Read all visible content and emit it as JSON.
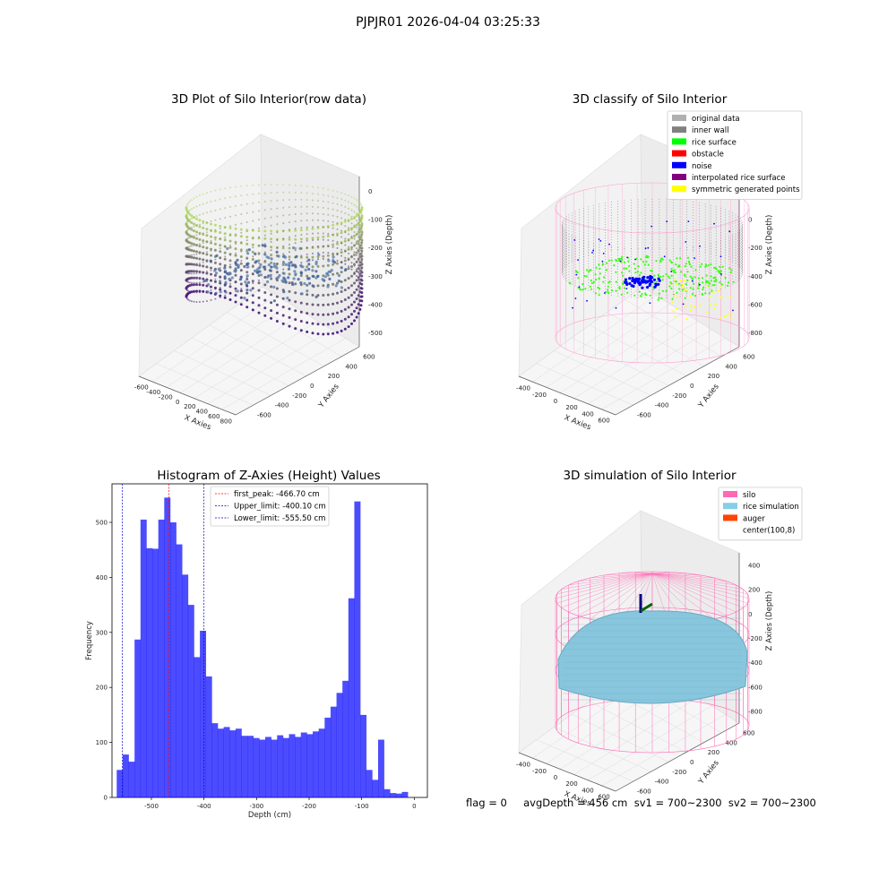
{
  "suptitle": "PJPJR01 2026-04-04 03:25:33",
  "footer": "flag = 0     avgDepth = 456 cm  sv1 = 700~2300  sv2 = 700~2300",
  "panels": {
    "raw": {
      "title": "3D Plot of Silo Interior(row data)",
      "xlabel": "X Axies",
      "ylabel": "Y Axies",
      "zlabel": "Z Axies (Depth)",
      "xticks": [
        "-600",
        "-400",
        "-200",
        "0",
        "200",
        "400",
        "600",
        "800"
      ],
      "yticks": [
        "600",
        "400",
        "200",
        "0",
        "-200",
        "-400",
        "-600"
      ],
      "zticks": [
        "0",
        "-100",
        "-200",
        "-300",
        "-400",
        "-500"
      ]
    },
    "classify": {
      "title": "3D classify of Silo Interior",
      "xlabel": "X Axies",
      "ylabel": "Y Axies",
      "zlabel": "Z Axies (Depth)",
      "xticks": [
        "-400",
        "-200",
        "0",
        "200",
        "400",
        "600"
      ],
      "yticks": [
        "600",
        "400",
        "200",
        "0",
        "-200",
        "-400",
        "-600"
      ],
      "zticks": [
        "200",
        "0",
        "-200",
        "-400",
        "-600",
        "-800"
      ],
      "legend": [
        {
          "label": "original data",
          "color": "#b0b0b0"
        },
        {
          "label": "inner wall",
          "color": "#808080"
        },
        {
          "label": "rice surface",
          "color": "#00ff00"
        },
        {
          "label": "obstacle",
          "color": "#ff0000"
        },
        {
          "label": "noise",
          "color": "#0000ff"
        },
        {
          "label": "interpolated rice surface",
          "color": "#800080"
        },
        {
          "label": "symmetric generated points",
          "color": "#ffff00"
        }
      ]
    },
    "simulation": {
      "title": "3D simulation of Silo Interior",
      "xlabel": "X Axies",
      "ylabel": "Y Axies",
      "zlabel": "Z Axies (Depth)",
      "xticks": [
        "-400",
        "-200",
        "0",
        "200",
        "400",
        "600"
      ],
      "yticks": [
        "600",
        "400",
        "200",
        "0",
        "-200",
        "-400",
        "-600"
      ],
      "zticks": [
        "400",
        "200",
        "0",
        "-200",
        "-400",
        "-600",
        "-800"
      ],
      "legend": [
        {
          "label": "silo",
          "color": "#ff69b4"
        },
        {
          "label": "rice simulation",
          "color": "#87ceeb"
        },
        {
          "label": "auger",
          "color": "#ff4500"
        },
        {
          "label": "center(100,8)",
          "color": "#ffffff"
        }
      ]
    }
  },
  "chart_data": {
    "type": "bar",
    "title": "Histogram of Z-Axies (Height) Values",
    "xlabel": "Depth (cm)",
    "ylabel": "Frequency",
    "xlim": [
      -575,
      25
    ],
    "ylim": [
      0,
      570
    ],
    "xticks": [
      -500,
      -400,
      -300,
      -200,
      -100,
      0
    ],
    "yticks": [
      0,
      100,
      200,
      300,
      400,
      500
    ],
    "bar_color": "#0000ff",
    "bin_start": -566,
    "bin_width": 11.3,
    "values": [
      50,
      78,
      65,
      287,
      505,
      453,
      452,
      505,
      545,
      500,
      460,
      405,
      350,
      255,
      303,
      220,
      135,
      125,
      128,
      122,
      125,
      112,
      112,
      108,
      105,
      110,
      105,
      113,
      108,
      115,
      110,
      118,
      115,
      120,
      125,
      145,
      165,
      190,
      212,
      362,
      538,
      150,
      50,
      32,
      105,
      15,
      8,
      7,
      10
    ],
    "lines": [
      {
        "label": "first_peak: -466.70 cm",
        "x": -466.7,
        "color": "#ff0000"
      },
      {
        "label": "Upper_limit: -400.10 cm",
        "x": -400.1,
        "color": "#0000cc"
      },
      {
        "label": "Lower_limit: -555.50 cm",
        "x": -555.5,
        "color": "#0000cc"
      }
    ]
  }
}
